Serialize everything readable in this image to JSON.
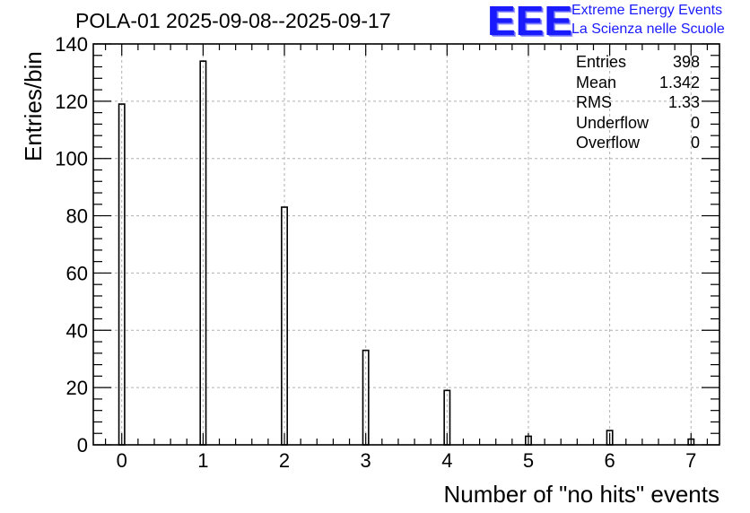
{
  "title": "POLA-01 2025-09-08--2025-09-17",
  "logo": {
    "mark": "EEE",
    "line1": "Extreme Energy Events",
    "line2": "La Scienza nelle Scuole",
    "color": "#1a1aff"
  },
  "stats": {
    "rows": [
      {
        "label": "Entries",
        "value": "398"
      },
      {
        "label": "Mean",
        "value": "1.342"
      },
      {
        "label": "RMS",
        "value": "1.33"
      },
      {
        "label": "Underflow",
        "value": "0"
      },
      {
        "label": "Overflow",
        "value": "0"
      }
    ]
  },
  "chart_data": {
    "type": "bar",
    "title": "POLA-01 2025-09-08--2025-09-17",
    "xlabel": "Number of \"no hits\" events",
    "ylabel": "Entries/bin",
    "categories": [
      "0",
      "1",
      "2",
      "3",
      "4",
      "5",
      "6",
      "7"
    ],
    "x": [
      0,
      1,
      2,
      3,
      4,
      5,
      6,
      7
    ],
    "values": [
      119,
      134,
      83,
      33,
      19,
      3,
      5,
      2
    ],
    "xlim": [
      -0.35,
      7.35
    ],
    "ylim": [
      0,
      140
    ],
    "xticks": [
      "0",
      "1",
      "2",
      "3",
      "4",
      "5",
      "6",
      "7"
    ],
    "yticks": [
      "0",
      "20",
      "40",
      "60",
      "80",
      "100",
      "120",
      "140"
    ],
    "grid": true,
    "bar_style": "hollow outline",
    "bar_color": "#000000",
    "grid_color": "#b0b0b0"
  }
}
